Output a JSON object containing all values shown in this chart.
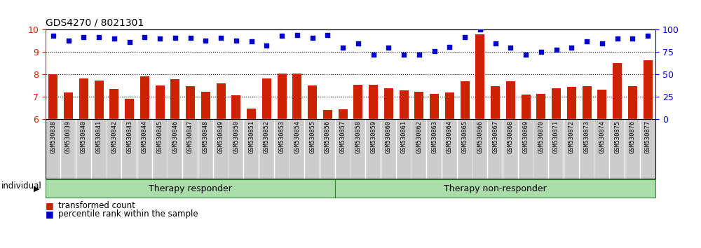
{
  "title": "GDS4270 / 8021301",
  "samples": [
    "GSM530838",
    "GSM530839",
    "GSM530840",
    "GSM530841",
    "GSM530842",
    "GSM530843",
    "GSM530844",
    "GSM530845",
    "GSM530846",
    "GSM530847",
    "GSM530848",
    "GSM530849",
    "GSM530850",
    "GSM530851",
    "GSM530852",
    "GSM530853",
    "GSM530854",
    "GSM530855",
    "GSM530856",
    "GSM530857",
    "GSM530858",
    "GSM530859",
    "GSM530860",
    "GSM530861",
    "GSM530862",
    "GSM530863",
    "GSM530864",
    "GSM530865",
    "GSM530866",
    "GSM530867",
    "GSM530868",
    "GSM530869",
    "GSM530870",
    "GSM530871",
    "GSM530872",
    "GSM530873",
    "GSM530874",
    "GSM530875",
    "GSM530876",
    "GSM530877"
  ],
  "bar_values": [
    8.02,
    7.18,
    7.82,
    7.72,
    7.35,
    6.92,
    7.92,
    7.5,
    7.78,
    7.47,
    7.22,
    7.6,
    7.06,
    6.48,
    7.82,
    8.05,
    8.05,
    7.5,
    6.4,
    6.45,
    7.55,
    7.52,
    7.38,
    7.3,
    7.22,
    7.12,
    7.18,
    7.7,
    9.78,
    7.48,
    7.68,
    7.1,
    7.12,
    7.38,
    7.45,
    7.48,
    7.32,
    8.5,
    7.48,
    8.62
  ],
  "percentile_values": [
    93,
    88,
    92,
    92,
    90,
    86,
    92,
    90,
    91,
    91,
    88,
    91,
    88,
    87,
    82,
    93,
    94,
    91,
    94,
    80,
    85,
    72,
    80,
    72,
    72,
    76,
    81,
    92,
    100,
    85,
    80,
    72,
    75,
    78,
    80,
    87,
    85,
    90,
    90,
    93
  ],
  "group_boundary": 19,
  "group1_label": "Therapy responder",
  "group2_label": "Therapy non-responder",
  "individual_label": "individual",
  "bar_color": "#cc2200",
  "dot_color": "#0000cc",
  "ylim_left": [
    6,
    10
  ],
  "ylim_right": [
    0,
    100
  ],
  "yticks_left": [
    6,
    7,
    8,
    9,
    10
  ],
  "yticks_right": [
    0,
    25,
    50,
    75,
    100
  ],
  "group_bg_color": "#aaddaa",
  "group_border_color": "#338833",
  "tick_label_bg": "#cccccc",
  "legend_bar_label": "transformed count",
  "legend_dot_label": "percentile rank within the sample"
}
